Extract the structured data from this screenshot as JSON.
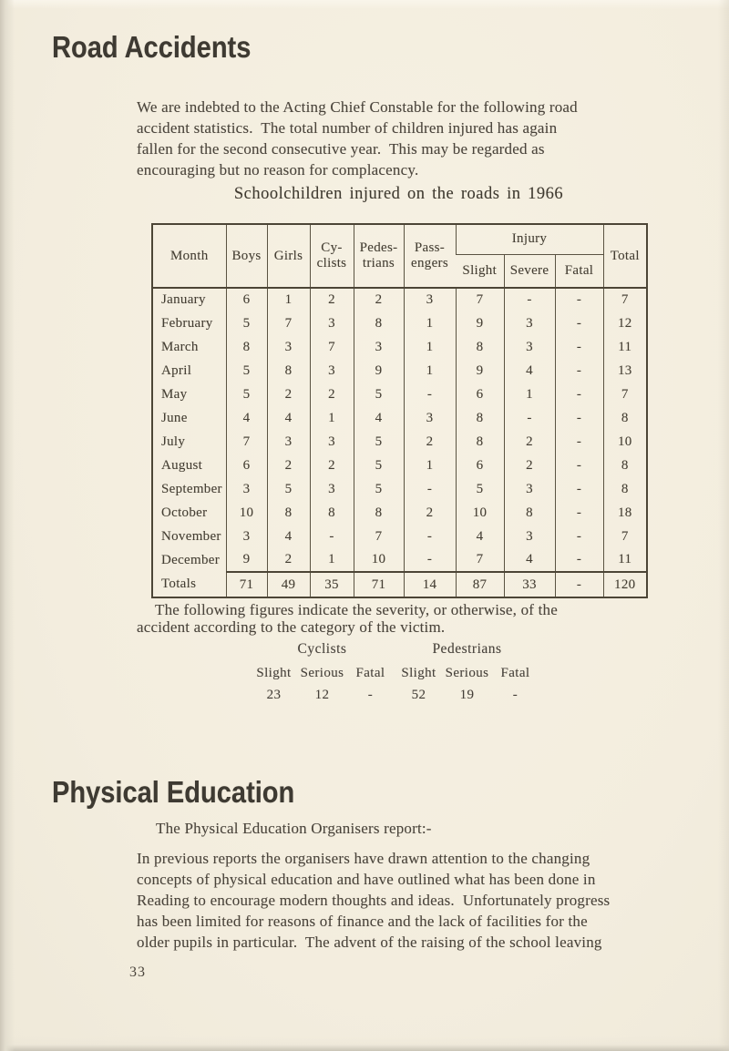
{
  "page": {
    "number": "33"
  },
  "road_accidents": {
    "heading": "Road Accidents",
    "intro": "We are indebted to the Acting Chief Constable for the following road\naccident statistics.  The total number of children injured has again\nfallen for the second consecutive year.  This may be regarded as\nencouraging but no reason for complacency.",
    "table_title": "Schoolchildren injured on the roads in 1966",
    "table": {
      "columns": [
        "Month",
        "Boys",
        "Girls",
        "Cy-\nclists",
        "Pedes-\ntrians",
        "Pass-\nengers"
      ],
      "injury_label": "Injury",
      "injury_sub": [
        "Slight",
        "Severe",
        "Fatal"
      ],
      "total_label": "Total",
      "rows": [
        [
          "January",
          "6",
          "1",
          "2",
          "2",
          "3",
          "7",
          "-",
          "-",
          "7"
        ],
        [
          "February",
          "5",
          "7",
          "3",
          "8",
          "1",
          "9",
          "3",
          "-",
          "12"
        ],
        [
          "March",
          "8",
          "3",
          "7",
          "3",
          "1",
          "8",
          "3",
          "-",
          "11"
        ],
        [
          "April",
          "5",
          "8",
          "3",
          "9",
          "1",
          "9",
          "4",
          "-",
          "13"
        ],
        [
          "May",
          "5",
          "2",
          "2",
          "5",
          "-",
          "6",
          "1",
          "-",
          "7"
        ],
        [
          "June",
          "4",
          "4",
          "1",
          "4",
          "3",
          "8",
          "-",
          "-",
          "8"
        ],
        [
          "July",
          "7",
          "3",
          "3",
          "5",
          "2",
          "8",
          "2",
          "-",
          "10"
        ],
        [
          "August",
          "6",
          "2",
          "2",
          "5",
          "1",
          "6",
          "2",
          "-",
          "8"
        ],
        [
          "September",
          "3",
          "5",
          "3",
          "5",
          "-",
          "5",
          "3",
          "-",
          "8"
        ],
        [
          "October",
          "10",
          "8",
          "8",
          "8",
          "2",
          "10",
          "8",
          "-",
          "18"
        ],
        [
          "November",
          "3",
          "4",
          "-",
          "7",
          "-",
          "4",
          "3",
          "-",
          "7"
        ],
        [
          "December",
          "9",
          "2",
          "1",
          "10",
          "-",
          "7",
          "4",
          "-",
          "11"
        ]
      ],
      "totals_row": [
        "Totals",
        "71",
        "49",
        "35",
        "71",
        "14",
        "87",
        "33",
        "-",
        "120"
      ]
    },
    "severity_note": "The following figures indicate the severity, or otherwise, of the\naccident according to the category of the victim.",
    "severity_figures": {
      "groups": [
        "Cyclists",
        "Pedestrians"
      ],
      "col_labels": [
        "Slight",
        "Serious",
        "Fatal",
        "Slight",
        "Serious",
        "Fatal"
      ],
      "values": [
        "23",
        "12",
        "-",
        "52",
        "19",
        "-"
      ]
    }
  },
  "physical_education": {
    "heading": "Physical Education",
    "report_intro": "The Physical Education Organisers report:-",
    "paragraph": "In previous reports the organisers have drawn attention to the changing\nconcepts of physical education and have outlined what has been done in\nReading to encourage modern thoughts and ideas.  Unfortunately progress\nhas been limited for reasons of finance and the lack of facilities for the\nolder pupils in particular.  The advent of the raising of the school leaving"
  },
  "colors": {
    "paper": "#f3edde",
    "ink": "#4a443b",
    "table_line": "#5a5342"
  }
}
